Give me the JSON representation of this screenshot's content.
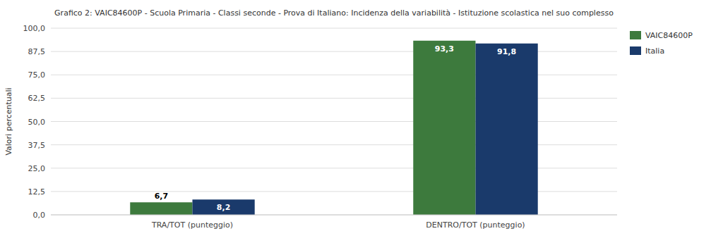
{
  "chart_data": {
    "type": "bar",
    "title": "Grafico 2: VAIC84600P - Scuola Primaria - Classi seconde - Prova di Italiano: Incidenza della variabilità - Istituzione scolastica nel suo complesso",
    "y_label": "Valori percentuali",
    "categories": [
      "TRA/TOT (punteggio)",
      "DENTRO/TOT (punteggio)"
    ],
    "series": [
      {
        "name": "VAIC84600P",
        "color": "#3d7a3d",
        "values": [
          6.7,
          93.3
        ],
        "value_labels": [
          "6,7",
          "93,3"
        ]
      },
      {
        "name": "Italia",
        "color": "#1a3a6b",
        "values": [
          8.2,
          91.8
        ],
        "value_labels": [
          "8,2",
          "91,8"
        ]
      }
    ],
    "ylim": [
      0,
      100
    ],
    "yticks": [
      {
        "value": 0.0,
        "label": "0,0"
      },
      {
        "value": 12.5,
        "label": "12,5"
      },
      {
        "value": 25.0,
        "label": "25,0"
      },
      {
        "value": 37.5,
        "label": "37,5"
      },
      {
        "value": 50.0,
        "label": "50,0"
      },
      {
        "value": 62.5,
        "label": "62,5"
      },
      {
        "value": 75.0,
        "label": "75,0"
      },
      {
        "value": 87.5,
        "label": "87,5"
      },
      {
        "value": 100.0,
        "label": "100,0"
      }
    ],
    "grid": true,
    "legend": "right",
    "data_labels": true
  }
}
